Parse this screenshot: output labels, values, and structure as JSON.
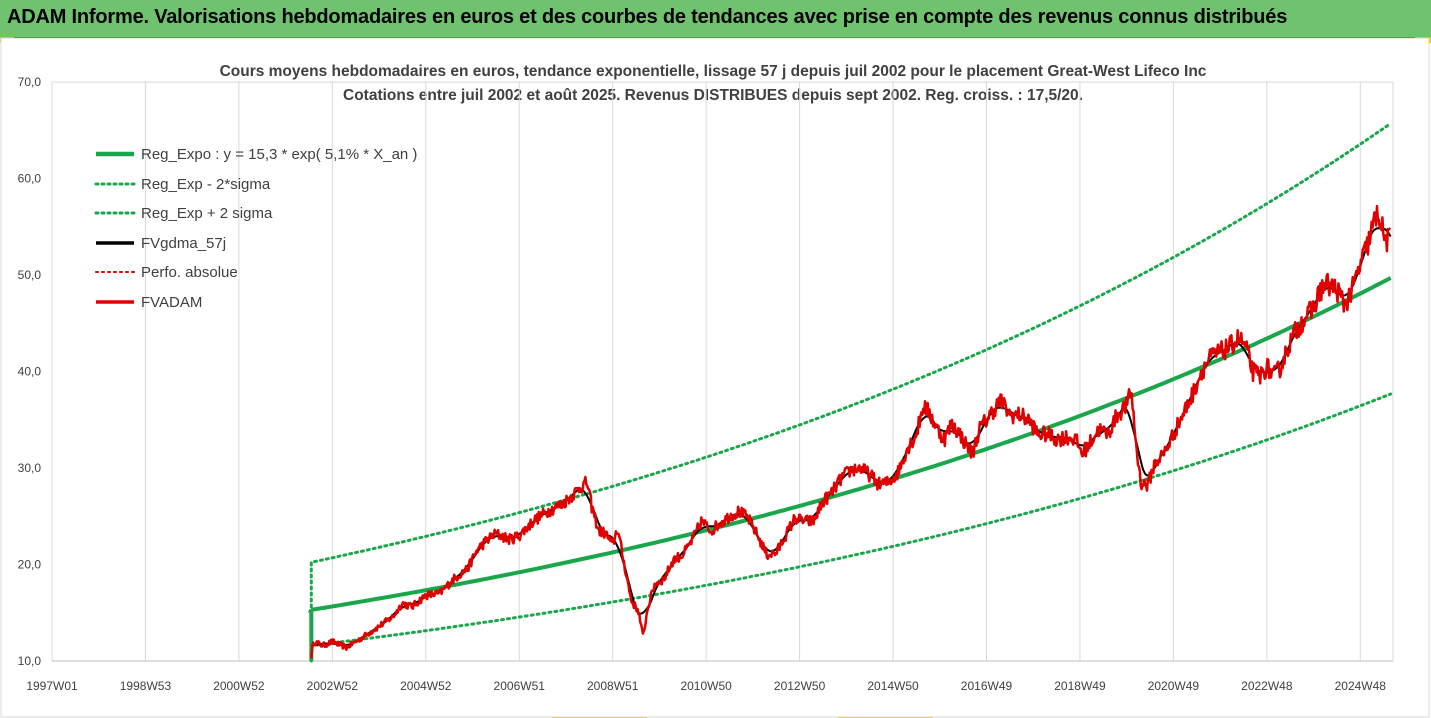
{
  "banner": {
    "title": "ADAM Informe. Valorisations hebdomadaires en euros et des courbes de tendances avec prise en compte des revenus connus distribués",
    "accent": "#f2c200",
    "background": "#6fc36f"
  },
  "chart_data": {
    "type": "line",
    "title": "Cours moyens hebdomadaires en euros, tendance exponentielle, lissage 57 j depuis juil 2002 pour le placement Great-West Lifeco Inc",
    "subtitle": "Cotations entre juil 2002 et août 2025. Revenus DISTRIBUES depuis sept 2002. Reg. croiss. : 17,5/20.",
    "xlabel": "",
    "ylabel": "",
    "ylim": [
      10,
      70
    ],
    "y_ticks": [
      "10,0",
      "20,0",
      "30,0",
      "40,0",
      "50,0",
      "60,0",
      "70,0"
    ],
    "xlim": [
      1997.0,
      2025.7
    ],
    "x_ticks": [
      {
        "label": "1997W01",
        "x": 1997.0
      },
      {
        "label": "1998W53",
        "x": 1999.0
      },
      {
        "label": "2000W52",
        "x": 2001.0
      },
      {
        "label": "2002W52",
        "x": 2003.0
      },
      {
        "label": "2004W52",
        "x": 2005.0
      },
      {
        "label": "2006W51",
        "x": 2007.0
      },
      {
        "label": "2008W51",
        "x": 2009.0
      },
      {
        "label": "2010W50",
        "x": 2011.0
      },
      {
        "label": "2012W50",
        "x": 2013.0
      },
      {
        "label": "2014W50",
        "x": 2015.0
      },
      {
        "label": "2016W49",
        "x": 2017.0
      },
      {
        "label": "2018W49",
        "x": 2019.0
      },
      {
        "label": "2020W49",
        "x": 2021.0
      },
      {
        "label": "2022W48",
        "x": 2023.0
      },
      {
        "label": "2024W48",
        "x": 2025.0
      }
    ],
    "grid": "vertical",
    "legend_position": "top-left",
    "regression": {
      "a": 15.3,
      "rate": 0.051,
      "start": 2002.55,
      "end": 2025.65,
      "sigma_low_factor": 0.758,
      "sigma_high_factor": 1.322
    },
    "series": [
      {
        "name": "Reg_Expo : y = 15,3 * exp( 5,1% *  X_an )",
        "style": "solid",
        "color": "#1aa64a",
        "kind": "reg"
      },
      {
        "name": "Reg_Exp - 2*sigma",
        "style": "dotted",
        "color": "#1aa64a",
        "kind": "low"
      },
      {
        "name": "Reg_Exp + 2 sigma",
        "style": "dotted",
        "color": "#1aa64a",
        "kind": "high"
      },
      {
        "name": "FVgdma_57j",
        "style": "solid",
        "color": "#000000",
        "kind": "smooth"
      },
      {
        "name": "Perfo. absolue",
        "style": "dotted",
        "color": "#e00000",
        "kind": "none"
      },
      {
        "name": "FVADAM",
        "style": "solid",
        "color": "#e00000",
        "kind": "price"
      }
    ],
    "price_points": [
      [
        2002.55,
        10.5
      ],
      [
        2002.6,
        12.0
      ],
      [
        2002.8,
        11.6
      ],
      [
        2003.0,
        12.0
      ],
      [
        2003.3,
        11.4
      ],
      [
        2003.6,
        12.3
      ],
      [
        2004.0,
        13.6
      ],
      [
        2004.3,
        14.6
      ],
      [
        2004.5,
        16.0
      ],
      [
        2004.7,
        15.6
      ],
      [
        2005.0,
        16.8
      ],
      [
        2005.3,
        17.0
      ],
      [
        2005.6,
        18.5
      ],
      [
        2005.9,
        19.6
      ],
      [
        2006.1,
        21.5
      ],
      [
        2006.3,
        22.5
      ],
      [
        2006.5,
        23.2
      ],
      [
        2006.8,
        22.6
      ],
      [
        2007.0,
        23.0
      ],
      [
        2007.3,
        24.5
      ],
      [
        2007.6,
        25.5
      ],
      [
        2007.9,
        26.2
      ],
      [
        2008.1,
        27.0
      ],
      [
        2008.3,
        28.0
      ],
      [
        2008.45,
        28.5
      ],
      [
        2008.55,
        26.0
      ],
      [
        2008.7,
        23.5
      ],
      [
        2008.85,
        23.2
      ],
      [
        2009.0,
        22.0
      ],
      [
        2009.1,
        23.8
      ],
      [
        2009.25,
        20.0
      ],
      [
        2009.4,
        16.2
      ],
      [
        2009.55,
        15.2
      ],
      [
        2009.65,
        12.5
      ],
      [
        2009.75,
        15.5
      ],
      [
        2009.9,
        18.0
      ],
      [
        2010.1,
        18.5
      ],
      [
        2010.3,
        20.5
      ],
      [
        2010.5,
        21.0
      ],
      [
        2010.7,
        22.5
      ],
      [
        2010.9,
        24.5
      ],
      [
        2011.1,
        23.5
      ],
      [
        2011.3,
        24.3
      ],
      [
        2011.5,
        25.0
      ],
      [
        2011.7,
        25.5
      ],
      [
        2011.9,
        24.8
      ],
      [
        2012.1,
        23.0
      ],
      [
        2012.3,
        21.0
      ],
      [
        2012.5,
        21.2
      ],
      [
        2012.7,
        23.0
      ],
      [
        2012.9,
        24.8
      ],
      [
        2013.1,
        24.5
      ],
      [
        2013.3,
        24.5
      ],
      [
        2013.5,
        26.5
      ],
      [
        2013.7,
        27.5
      ],
      [
        2013.9,
        29.0
      ],
      [
        2014.1,
        29.8
      ],
      [
        2014.3,
        30.0
      ],
      [
        2014.5,
        29.3
      ],
      [
        2014.7,
        28.3
      ],
      [
        2014.9,
        28.5
      ],
      [
        2015.1,
        29.5
      ],
      [
        2015.3,
        32.0
      ],
      [
        2015.5,
        33.5
      ],
      [
        2015.65,
        36.5
      ],
      [
        2015.8,
        35.5
      ],
      [
        2015.95,
        34.0
      ],
      [
        2016.1,
        33.0
      ],
      [
        2016.25,
        34.5
      ],
      [
        2016.4,
        33.8
      ],
      [
        2016.55,
        32.5
      ],
      [
        2016.7,
        31.5
      ],
      [
        2016.85,
        34.0
      ],
      [
        2017.0,
        35.0
      ],
      [
        2017.15,
        36.0
      ],
      [
        2017.3,
        37.0
      ],
      [
        2017.5,
        35.5
      ],
      [
        2017.7,
        35.5
      ],
      [
        2017.9,
        35.0
      ],
      [
        2018.1,
        33.5
      ],
      [
        2018.3,
        33.5
      ],
      [
        2018.5,
        33.0
      ],
      [
        2018.7,
        33.2
      ],
      [
        2018.9,
        33.0
      ],
      [
        2019.05,
        31.5
      ],
      [
        2019.2,
        32.5
      ],
      [
        2019.4,
        34.0
      ],
      [
        2019.6,
        33.5
      ],
      [
        2019.8,
        35.5
      ],
      [
        2020.0,
        36.5
      ],
      [
        2020.1,
        38.0
      ],
      [
        2020.2,
        32.5
      ],
      [
        2020.3,
        28.5
      ],
      [
        2020.45,
        28.2
      ],
      [
        2020.6,
        30.5
      ],
      [
        2020.8,
        31.5
      ],
      [
        2021.0,
        33.5
      ],
      [
        2021.2,
        35.5
      ],
      [
        2021.4,
        37.5
      ],
      [
        2021.6,
        40.0
      ],
      [
        2021.8,
        41.5
      ],
      [
        2022.0,
        42.0
      ],
      [
        2022.2,
        42.5
      ],
      [
        2022.4,
        43.5
      ],
      [
        2022.55,
        42.5
      ],
      [
        2022.7,
        40.0
      ],
      [
        2022.85,
        39.5
      ],
      [
        2023.0,
        40.5
      ],
      [
        2023.15,
        39.5
      ],
      [
        2023.3,
        40.5
      ],
      [
        2023.45,
        42.5
      ],
      [
        2023.6,
        44.0
      ],
      [
        2023.8,
        45.5
      ],
      [
        2024.0,
        46.5
      ],
      [
        2024.15,
        48.5
      ],
      [
        2024.3,
        49.0
      ],
      [
        2024.5,
        48.5
      ],
      [
        2024.65,
        47.0
      ],
      [
        2024.8,
        48.0
      ],
      [
        2025.0,
        51.0
      ],
      [
        2025.15,
        53.0
      ],
      [
        2025.3,
        55.5
      ],
      [
        2025.4,
        56.5
      ],
      [
        2025.5,
        54.0
      ],
      [
        2025.6,
        53.5
      ],
      [
        2025.65,
        53.8
      ]
    ]
  }
}
